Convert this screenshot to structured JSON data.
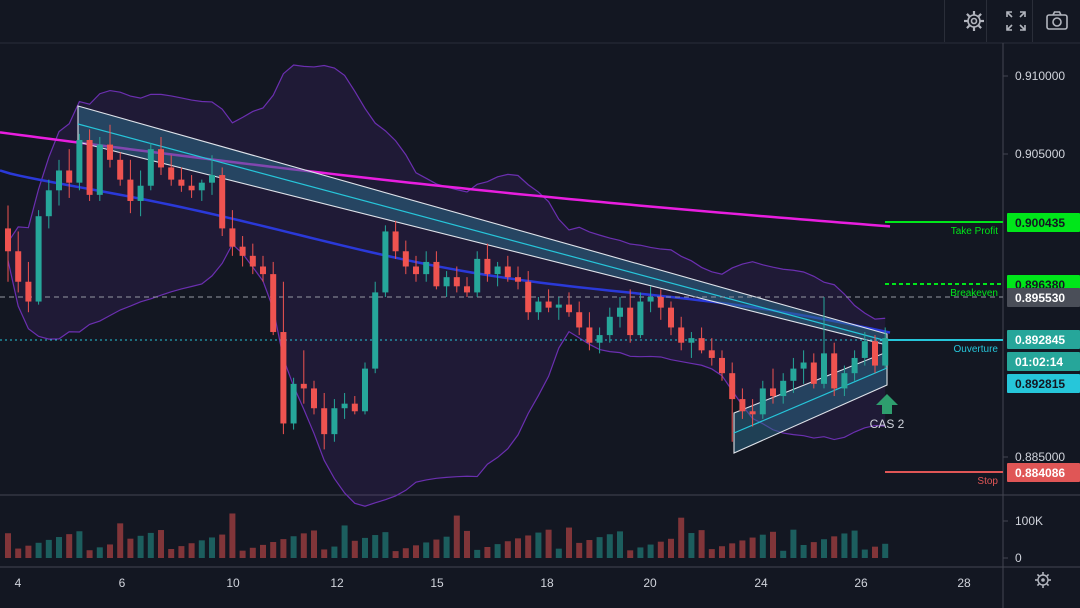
{
  "toolbar": {
    "buttons": [
      {
        "name": "settings-button",
        "icon": "gear-icon"
      },
      {
        "name": "fullscreen-button",
        "icon": "fullscreen-icon"
      },
      {
        "name": "screenshot-button",
        "icon": "camera-icon"
      }
    ]
  },
  "colors": {
    "background": "#131722",
    "up": "#26a69a",
    "down": "#ef5350",
    "ma_long": "#e91ee0",
    "ma_short": "#2a39d8",
    "bollinger": "#6b2fb0",
    "channel_fill": "#2b6a87",
    "take_profit": "#00e61a",
    "stop": "#e05656",
    "entry": "#26c6da",
    "arrow": "#2e9e6e"
  },
  "price_axis": {
    "ticks": [
      "0.910000",
      "0.905000",
      "0.885000"
    ],
    "volume_ticks": [
      "100K",
      "0"
    ]
  },
  "time_axis": {
    "ticks": [
      "4",
      "6",
      "10",
      "12",
      "15",
      "18",
      "20",
      "24",
      "26",
      "28"
    ]
  },
  "levels": {
    "take_profit": {
      "label": "Take Profit",
      "price": "0.900435"
    },
    "breakeven": {
      "label": "Breakeven",
      "price": "0.896380"
    },
    "current_line": {
      "price": "0.895530"
    },
    "entry": {
      "label": "Ouverture",
      "price": "0.892845"
    },
    "countdown": "01:02:14",
    "bid": {
      "price": "0.892815"
    },
    "stop": {
      "label": "Stop",
      "price": "0.884086"
    }
  },
  "annotation": {
    "text": "CAS 2"
  },
  "chart_data": {
    "type": "candlestick",
    "candles_ohlc": [
      [
        0.9,
        0.9015,
        0.8965,
        0.8985
      ],
      [
        0.8985,
        0.8998,
        0.8958,
        0.8965
      ],
      [
        0.8965,
        0.8978,
        0.8945,
        0.8952
      ],
      [
        0.8952,
        0.9012,
        0.895,
        0.9008
      ],
      [
        0.9008,
        0.9032,
        0.9,
        0.9025
      ],
      [
        0.9025,
        0.9045,
        0.9015,
        0.9038
      ],
      [
        0.9038,
        0.9052,
        0.902,
        0.903
      ],
      [
        0.903,
        0.9062,
        0.9025,
        0.9058
      ],
      [
        0.9058,
        0.9065,
        0.9018,
        0.9022
      ],
      [
        0.9022,
        0.906,
        0.9018,
        0.9055
      ],
      [
        0.9055,
        0.9068,
        0.904,
        0.9045
      ],
      [
        0.9045,
        0.905,
        0.9028,
        0.9032
      ],
      [
        0.9032,
        0.9045,
        0.901,
        0.9018
      ],
      [
        0.9018,
        0.9038,
        0.9008,
        0.9028
      ],
      [
        0.9028,
        0.9056,
        0.9025,
        0.9052
      ],
      [
        0.9052,
        0.906,
        0.9035,
        0.904
      ],
      [
        0.904,
        0.9048,
        0.9028,
        0.9032
      ],
      [
        0.9032,
        0.904,
        0.9024,
        0.9028
      ],
      [
        0.9028,
        0.9035,
        0.902,
        0.9025
      ],
      [
        0.9025,
        0.9032,
        0.9018,
        0.903
      ],
      [
        0.903,
        0.9048,
        0.9022,
        0.9035
      ],
      [
        0.9035,
        0.904,
        0.8995,
        0.9
      ],
      [
        0.9,
        0.9012,
        0.8982,
        0.8988
      ],
      [
        0.8988,
        0.8995,
        0.8975,
        0.8982
      ],
      [
        0.8982,
        0.899,
        0.897,
        0.8975
      ],
      [
        0.8975,
        0.8982,
        0.8965,
        0.897
      ],
      [
        0.897,
        0.8978,
        0.893,
        0.8932
      ],
      [
        0.8932,
        0.8965,
        0.8865,
        0.8872
      ],
      [
        0.8872,
        0.8902,
        0.8868,
        0.8898
      ],
      [
        0.8898,
        0.892,
        0.8885,
        0.8895
      ],
      [
        0.8895,
        0.89,
        0.8878,
        0.8882
      ],
      [
        0.8882,
        0.8892,
        0.8855,
        0.8865
      ],
      [
        0.8865,
        0.8888,
        0.886,
        0.8882
      ],
      [
        0.8882,
        0.8892,
        0.8875,
        0.8885
      ],
      [
        0.8885,
        0.889,
        0.8878,
        0.888
      ],
      [
        0.888,
        0.8912,
        0.8878,
        0.8908
      ],
      [
        0.8908,
        0.8965,
        0.8905,
        0.8958
      ],
      [
        0.8958,
        0.9002,
        0.8955,
        0.8998
      ],
      [
        0.8998,
        0.9005,
        0.898,
        0.8985
      ],
      [
        0.8985,
        0.8992,
        0.897,
        0.8975
      ],
      [
        0.8975,
        0.8982,
        0.8965,
        0.897
      ],
      [
        0.897,
        0.8985,
        0.8965,
        0.8978
      ],
      [
        0.8978,
        0.8985,
        0.896,
        0.8962
      ],
      [
        0.8962,
        0.8972,
        0.8955,
        0.8968
      ],
      [
        0.8968,
        0.8975,
        0.8958,
        0.8962
      ],
      [
        0.8962,
        0.8968,
        0.8955,
        0.8958
      ],
      [
        0.8958,
        0.8985,
        0.8955,
        0.898
      ],
      [
        0.898,
        0.899,
        0.8965,
        0.897
      ],
      [
        0.897,
        0.8978,
        0.8962,
        0.8975
      ],
      [
        0.8975,
        0.8982,
        0.8965,
        0.8968
      ],
      [
        0.8968,
        0.8975,
        0.896,
        0.8965
      ],
      [
        0.8965,
        0.8972,
        0.894,
        0.8945
      ],
      [
        0.8945,
        0.8955,
        0.894,
        0.8952
      ],
      [
        0.8952,
        0.896,
        0.8945,
        0.8948
      ],
      [
        0.8948,
        0.8955,
        0.894,
        0.895
      ],
      [
        0.895,
        0.8958,
        0.8942,
        0.8945
      ],
      [
        0.8945,
        0.8952,
        0.893,
        0.8935
      ],
      [
        0.8935,
        0.8945,
        0.892,
        0.8925
      ],
      [
        0.8925,
        0.8935,
        0.8918,
        0.893
      ],
      [
        0.893,
        0.8948,
        0.8925,
        0.8942
      ],
      [
        0.8942,
        0.8955,
        0.8935,
        0.8948
      ],
      [
        0.8948,
        0.896,
        0.8925,
        0.893
      ],
      [
        0.893,
        0.8958,
        0.8928,
        0.8952
      ],
      [
        0.8952,
        0.8962,
        0.8945,
        0.8955
      ],
      [
        0.8955,
        0.896,
        0.894,
        0.8948
      ],
      [
        0.8948,
        0.8952,
        0.893,
        0.8935
      ],
      [
        0.8935,
        0.8942,
        0.892,
        0.8925
      ],
      [
        0.8925,
        0.8932,
        0.8915,
        0.8928
      ],
      [
        0.8928,
        0.8935,
        0.8918,
        0.892
      ],
      [
        0.892,
        0.8928,
        0.891,
        0.8915
      ],
      [
        0.8915,
        0.892,
        0.89,
        0.8905
      ],
      [
        0.8905,
        0.8912,
        0.886,
        0.8888
      ],
      [
        0.8888,
        0.8895,
        0.8875,
        0.888
      ],
      [
        0.888,
        0.8888,
        0.887,
        0.8878
      ],
      [
        0.8878,
        0.89,
        0.8875,
        0.8895
      ],
      [
        0.8895,
        0.8908,
        0.8885,
        0.889
      ],
      [
        0.889,
        0.8905,
        0.8885,
        0.89
      ],
      [
        0.89,
        0.8915,
        0.8892,
        0.8908
      ],
      [
        0.8908,
        0.892,
        0.8898,
        0.8912
      ],
      [
        0.8912,
        0.8918,
        0.8895,
        0.8898
      ],
      [
        0.8898,
        0.8955,
        0.8895,
        0.8918
      ],
      [
        0.8918,
        0.8925,
        0.889,
        0.8895
      ],
      [
        0.8895,
        0.891,
        0.889,
        0.8905
      ],
      [
        0.8905,
        0.892,
        0.89,
        0.8915
      ],
      [
        0.8915,
        0.8932,
        0.891,
        0.8926
      ],
      [
        0.8926,
        0.893,
        0.8905,
        0.891
      ],
      [
        0.891,
        0.8935,
        0.8908,
        0.8928
      ]
    ],
    "price_range": [
      0.8825,
      0.9125
    ],
    "volume_range": [
      0,
      140000
    ]
  }
}
